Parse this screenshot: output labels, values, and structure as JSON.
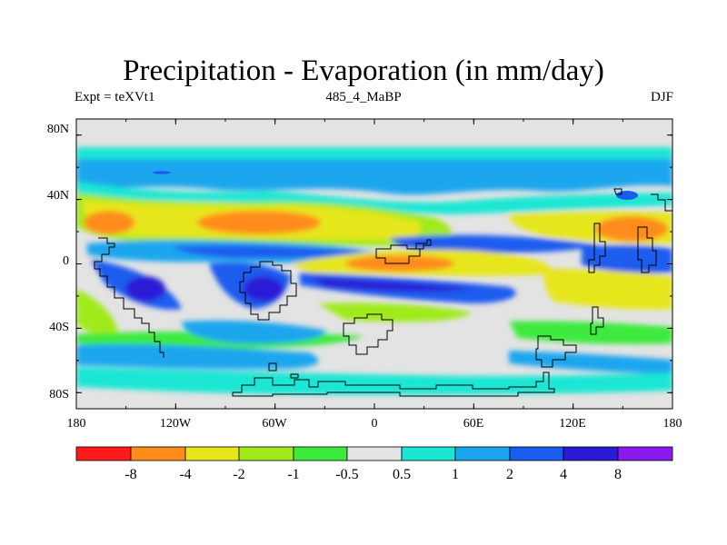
{
  "title": "Precipitation - Evaporation (in mm/day)",
  "subtitle_left": "Expt = teXVt1",
  "subtitle_center": "485_4_MaBP",
  "subtitle_right": "DJF",
  "lat_ticks": [
    "80N",
    "40N",
    "0",
    "40S",
    "80S"
  ],
  "lon_ticks": [
    "180",
    "120W",
    "60W",
    "0",
    "60E",
    "120E",
    "180"
  ],
  "colorbar": {
    "colors": [
      "#ff1a1a",
      "#ff8c1a",
      "#e6e61a",
      "#a0ea1a",
      "#3cea3c",
      "#e3e3e3",
      "#1ae6d4",
      "#1aa6ee",
      "#1a5cee",
      "#2a1ad6",
      "#8a1aee"
    ],
    "labels": [
      "-8",
      "-4",
      "-2",
      "-1",
      "-0.5",
      "0.5",
      "1",
      "2",
      "4",
      "8"
    ]
  }
}
